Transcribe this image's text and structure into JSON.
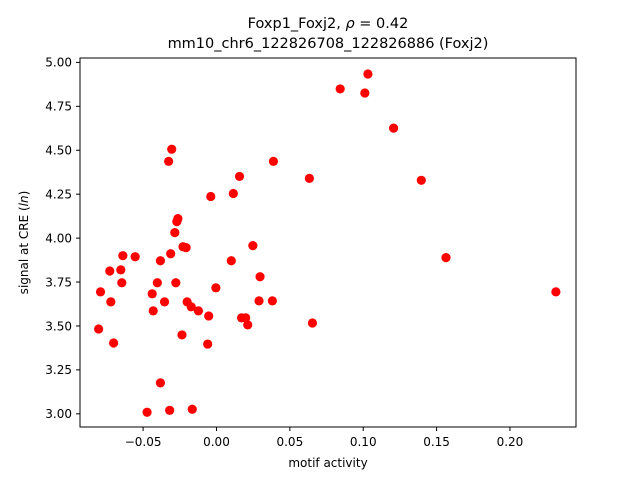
{
  "chart_data": {
    "type": "scatter",
    "title_line1_prefix": "Foxp1_Foxj2, ",
    "title_line1_rho": "ρ",
    "title_line1_suffix": " = 0.42",
    "title_line2": "mm10_chr6_122826708_122826886 (Foxj2)",
    "xlabel": "motif activity",
    "ylabel_prefix": "signal at CRE (",
    "ylabel_italic": "ln",
    "ylabel_suffix": ")",
    "xlim": [
      -0.093,
      0.245
    ],
    "ylim": [
      2.925,
      5.025
    ],
    "xticks": [
      {
        "value": -0.05,
        "label": "−0.05"
      },
      {
        "value": 0.0,
        "label": "0.00"
      },
      {
        "value": 0.05,
        "label": "0.05"
      },
      {
        "value": 0.1,
        "label": "0.10"
      },
      {
        "value": 0.15,
        "label": "0.15"
      },
      {
        "value": 0.2,
        "label": "0.20"
      }
    ],
    "yticks": [
      {
        "value": 3.0,
        "label": "3.00"
      },
      {
        "value": 3.25,
        "label": "3.25"
      },
      {
        "value": 3.5,
        "label": "3.50"
      },
      {
        "value": 3.75,
        "label": "3.75"
      },
      {
        "value": 4.0,
        "label": "4.00"
      },
      {
        "value": 4.25,
        "label": "4.25"
      },
      {
        "value": 4.5,
        "label": "4.50"
      },
      {
        "value": 4.75,
        "label": "4.75"
      },
      {
        "value": 5.0,
        "label": "5.00"
      }
    ],
    "grid": false,
    "legend": "none",
    "marker_color": "#ff0000",
    "points": [
      {
        "x": -0.0803,
        "y": 3.483
      },
      {
        "x": -0.079,
        "y": 3.694
      },
      {
        "x": -0.0727,
        "y": 3.813
      },
      {
        "x": -0.072,
        "y": 3.637
      },
      {
        "x": -0.0701,
        "y": 3.403
      },
      {
        "x": -0.0652,
        "y": 3.819
      },
      {
        "x": -0.0645,
        "y": 3.746
      },
      {
        "x": -0.0638,
        "y": 3.9
      },
      {
        "x": -0.0554,
        "y": 3.894
      },
      {
        "x": -0.0473,
        "y": 3.009
      },
      {
        "x": -0.0438,
        "y": 3.683
      },
      {
        "x": -0.0431,
        "y": 3.586
      },
      {
        "x": -0.0403,
        "y": 3.746
      },
      {
        "x": -0.0382,
        "y": 3.871
      },
      {
        "x": -0.0382,
        "y": 3.176
      },
      {
        "x": -0.0354,
        "y": 3.637
      },
      {
        "x": -0.0326,
        "y": 4.437
      },
      {
        "x": -0.0319,
        "y": 3.02
      },
      {
        "x": -0.0312,
        "y": 3.911
      },
      {
        "x": -0.0305,
        "y": 4.506
      },
      {
        "x": -0.0284,
        "y": 4.031
      },
      {
        "x": -0.0277,
        "y": 3.746
      },
      {
        "x": -0.027,
        "y": 4.094
      },
      {
        "x": -0.0263,
        "y": 4.111
      },
      {
        "x": -0.0235,
        "y": 3.449
      },
      {
        "x": -0.0228,
        "y": 3.951
      },
      {
        "x": -0.0207,
        "y": 3.946
      },
      {
        "x": -0.02,
        "y": 3.637
      },
      {
        "x": -0.0172,
        "y": 3.609
      },
      {
        "x": -0.0165,
        "y": 3.026
      },
      {
        "x": -0.0123,
        "y": 3.586
      },
      {
        "x": -0.006,
        "y": 3.397
      },
      {
        "x": -0.0053,
        "y": 3.557
      },
      {
        "x": -0.0039,
        "y": 4.237
      },
      {
        "x": -0.0004,
        "y": 3.717
      },
      {
        "x": 0.0101,
        "y": 3.871
      },
      {
        "x": 0.0115,
        "y": 4.254
      },
      {
        "x": 0.0157,
        "y": 4.351
      },
      {
        "x": 0.0171,
        "y": 3.546
      },
      {
        "x": 0.0199,
        "y": 3.546
      },
      {
        "x": 0.0213,
        "y": 3.506
      },
      {
        "x": 0.0248,
        "y": 3.957
      },
      {
        "x": 0.029,
        "y": 3.643
      },
      {
        "x": 0.0297,
        "y": 3.78
      },
      {
        "x": 0.0381,
        "y": 3.643
      },
      {
        "x": 0.0388,
        "y": 4.437
      },
      {
        "x": 0.0633,
        "y": 4.34
      },
      {
        "x": 0.0654,
        "y": 3.517
      },
      {
        "x": 0.0843,
        "y": 4.849
      },
      {
        "x": 0.1011,
        "y": 4.826
      },
      {
        "x": 0.1032,
        "y": 4.934
      },
      {
        "x": 0.1207,
        "y": 4.626
      },
      {
        "x": 0.1396,
        "y": 4.329
      },
      {
        "x": 0.1564,
        "y": 3.889
      },
      {
        "x": 0.2313,
        "y": 3.694
      }
    ]
  }
}
